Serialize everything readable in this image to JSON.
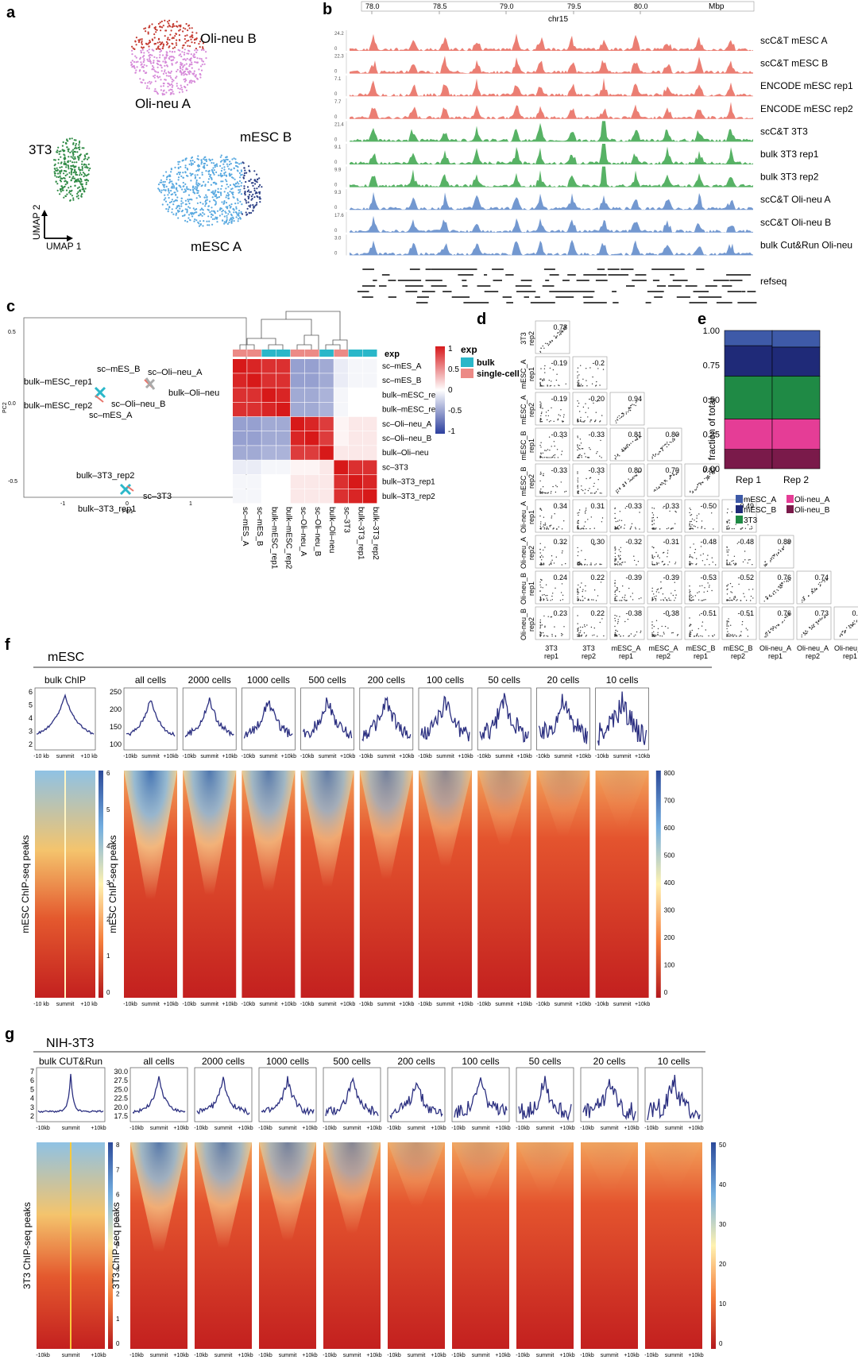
{
  "panel_letters": {
    "a": "a",
    "b": "b",
    "c": "c",
    "d": "d",
    "e": "e",
    "f": "f",
    "g": "g"
  },
  "panel_a": {
    "clusters": {
      "oli_b": "Oli-neu B",
      "oli_a": "Oli-neu A",
      "t3": "3T3",
      "mesc_b": "mESC B",
      "mesc_a": "mESC A"
    },
    "axis": {
      "y": "UMAP 2",
      "x": "UMAP 1"
    }
  },
  "panel_b": {
    "ticks": [
      "78.0",
      "78.5",
      "79.0",
      "79.5",
      "80.0"
    ],
    "unit": "Mbp",
    "chrom": "chr15",
    "tracks": [
      {
        "label": "scC&T mESC A",
        "max": "24.2",
        "color": "#e8675a"
      },
      {
        "label": "scC&T mESC B",
        "max": "22.3",
        "color": "#e8675a"
      },
      {
        "label": "ENCODE mESC rep1",
        "max": "7.1",
        "color": "#e8675a"
      },
      {
        "label": "ENCODE mESC rep2",
        "max": "7.7",
        "color": "#e8675a"
      },
      {
        "label": "scC&T 3T3",
        "max": "21.4",
        "color": "#3aa54a"
      },
      {
        "label": "bulk 3T3 rep1",
        "max": "9.1",
        "color": "#3aa54a"
      },
      {
        "label": "bulk 3T3 rep2",
        "max": "9.9",
        "color": "#3aa54a"
      },
      {
        "label": "scC&T Oli-neu A",
        "max": "9.3",
        "color": "#5b86c8"
      },
      {
        "label": "scC&T Oli-neu B",
        "max": "17.6",
        "color": "#5b86c8"
      },
      {
        "label": "bulk Cut&Run Oli-neu",
        "max": "3.0",
        "color": "#5b86c8"
      }
    ],
    "refseq_label": "refseq"
  },
  "panel_c": {
    "pca": {
      "xlabel": "PC1",
      "ylabel": "PC2",
      "yticks": [
        "0.5",
        "0.0",
        "-0.5"
      ],
      "xticks": [
        "-1",
        "0",
        "1"
      ],
      "labels": {
        "sc_mes_b": "sc–mES_B",
        "bulk_mesc_rep1": "bulk–mESC_rep1",
        "bulk_mesc_rep2": "bulk–mESC_rep2",
        "sc_mes_a": "sc–mES_A",
        "sc_oli_a": "sc–Oli–neu_A",
        "bulk_oli": "bulk–Oli–neu",
        "sc_oli_b": "sc–Oli–neu_B",
        "bulk_3t3_rep2": "bulk–3T3_rep2",
        "sc_3t3": "sc–3T3",
        "bulk_3t3_rep1": "bulk–3T3_rep1"
      }
    },
    "heatmap": {
      "rows": [
        "sc–mES_A",
        "sc–mES_B",
        "bulk–mESC_rep1",
        "bulk–mESC_rep2",
        "sc–Oli–neu_A",
        "sc–Oli–neu_B",
        "bulk–Oli–neu",
        "sc–3T3",
        "bulk–3T3_rep1",
        "bulk–3T3_rep2"
      ],
      "exp_label": "exp",
      "col_exp": [
        "single",
        "single",
        "bulk",
        "bulk",
        "single",
        "single",
        "bulk",
        "single",
        "bulk",
        "bulk"
      ],
      "legend_title": "exp",
      "legend_bulk": "bulk",
      "legend_single": "single-cell",
      "scale_ticks": [
        "1",
        "0.5",
        "0",
        "-0.5",
        "-1"
      ],
      "values": [
        [
          1,
          0.95,
          0.9,
          0.9,
          -0.5,
          -0.5,
          -0.45,
          -0.1,
          -0.05,
          -0.05
        ],
        [
          0.95,
          1,
          0.9,
          0.9,
          -0.5,
          -0.5,
          -0.45,
          -0.1,
          -0.05,
          -0.05
        ],
        [
          0.9,
          0.9,
          1,
          0.95,
          -0.45,
          -0.45,
          -0.4,
          -0.05,
          0,
          0
        ],
        [
          0.9,
          0.9,
          0.95,
          1,
          -0.45,
          -0.45,
          -0.4,
          -0.05,
          0,
          0
        ],
        [
          -0.5,
          -0.5,
          -0.45,
          -0.45,
          1,
          0.95,
          0.85,
          0.05,
          0.1,
          0.1
        ],
        [
          -0.5,
          -0.5,
          -0.45,
          -0.45,
          0.95,
          1,
          0.85,
          0.05,
          0.1,
          0.1
        ],
        [
          -0.45,
          -0.45,
          -0.4,
          -0.4,
          0.85,
          0.85,
          1,
          0.1,
          0.1,
          0.1
        ],
        [
          -0.1,
          -0.1,
          -0.05,
          -0.05,
          0.05,
          0.05,
          0.1,
          1,
          0.9,
          0.9
        ],
        [
          -0.05,
          -0.05,
          0,
          0,
          0.1,
          0.1,
          0.1,
          0.9,
          1,
          0.95
        ],
        [
          -0.05,
          -0.05,
          0,
          0,
          0.1,
          0.1,
          0.1,
          0.9,
          0.95,
          1
        ]
      ]
    }
  },
  "panel_d": {
    "row_labels": [
      "3T3\nrep2",
      "mESC_A\nrep1",
      "mESC_A\nrep2",
      "mESC_B\nrep1",
      "mESC_B\nrep2",
      "Oli-neu_A\nrep1",
      "Oli-neu_A\nrep2",
      "Oli-neu_B\nrep1",
      "Oli-neu_B\nrep2"
    ],
    "col_labels": [
      "3T3\nrep1",
      "3T3\nrep2",
      "mESC_A\nrep1",
      "mESC_A\nrep2",
      "mESC_B\nrep1",
      "mESC_B\nrep2",
      "Oli-neu_A\nrep1",
      "Oli-neu_A\nrep2",
      "Oli-neu_B\nrep1"
    ],
    "corr": [
      [
        "0.78"
      ],
      [
        "-0.19",
        "-0.2"
      ],
      [
        "-0.19",
        "-0.20",
        "0.94"
      ],
      [
        "-0.33",
        "-0.33",
        "0.81",
        "0.80"
      ],
      [
        "-0.33",
        "-0.33",
        "0.80",
        "0.79",
        "0.87"
      ],
      [
        "0.34",
        "0.31",
        "-0.33",
        "-0.33",
        "-0.50",
        "-0.49"
      ],
      [
        "0.32",
        "0.30",
        "-0.32",
        "-0.31",
        "-0.48",
        "-0.48",
        "0.89"
      ],
      [
        "0.24",
        "0.22",
        "-0.39",
        "-0.39",
        "-0.53",
        "-0.52",
        "0.76",
        "0.74"
      ],
      [
        "0.23",
        "0.22",
        "-0.38",
        "-0.38",
        "-0.51",
        "-0.51",
        "0.76",
        "0.73",
        "0.87"
      ]
    ]
  },
  "panel_e": {
    "ylabel": "fraction of total",
    "yticks": [
      "1.00",
      "0.75",
      "0.50",
      "0.25",
      "0.00"
    ],
    "bars": [
      "Rep 1",
      "Rep 2"
    ],
    "legend": [
      {
        "name": "mESC_A",
        "color": "#3e5aa8"
      },
      {
        "name": "Oli-neu_A",
        "color": "#e53d96"
      },
      {
        "name": "mESC_B",
        "color": "#1f2a78"
      },
      {
        "name": "Oli-neu_B",
        "color": "#7a1a4a"
      },
      {
        "name": "3T3",
        "color": "#1f8a45"
      }
    ],
    "chart_data": {
      "type": "bar",
      "categories": [
        "Rep 1",
        "Rep 2"
      ],
      "ylabel": "fraction of total",
      "ylim": [
        0,
        1
      ],
      "series": [
        {
          "name": "Oli-neu_B",
          "values": [
            0.14,
            0.14
          ]
        },
        {
          "name": "Oli-neu_A",
          "values": [
            0.22,
            0.22
          ]
        },
        {
          "name": "3T3",
          "values": [
            0.31,
            0.31
          ]
        },
        {
          "name": "mESC_B",
          "values": [
            0.22,
            0.21
          ]
        },
        {
          "name": "mESC_A",
          "values": [
            0.11,
            0.12
          ]
        }
      ]
    }
  },
  "panel_f": {
    "title": "mESC",
    "first_label": "bulk ChIP",
    "cols": [
      "all cells",
      "2000 cells",
      "1000 cells",
      "500 cells",
      "200 cells",
      "100 cells",
      "50 cells",
      "20 cells",
      "10 cells"
    ],
    "bulk_yticks": [
      "6",
      "5",
      "4",
      "3",
      "2"
    ],
    "sc_yticks": [
      "250",
      "200",
      "150",
      "100"
    ],
    "xticks": [
      "-10 kb",
      "summit",
      "+10 kb"
    ],
    "xticks_small": [
      "-10kb",
      "summit",
      "+10kb"
    ],
    "ylabel_bulk": "mESC ChIP-seq peaks",
    "ylabel_sc": "mESC ChIP-seq peaks",
    "scale_bulk": [
      "6",
      "5",
      "4",
      "3",
      "2",
      "1",
      "0"
    ],
    "scale_sc": [
      "800",
      "700",
      "600",
      "500",
      "400",
      "300",
      "200",
      "100",
      "0"
    ],
    "heat_density": [
      0.95,
      0.9,
      0.85,
      0.8,
      0.7,
      0.55,
      0.3,
      0.18,
      0.08
    ]
  },
  "panel_g": {
    "title": "NIH-3T3",
    "first_label": "bulk CUT&Run",
    "cols": [
      "all cells",
      "2000 cells",
      "1000 cells",
      "500 cells",
      "200 cells",
      "100 cells",
      "50 cells",
      "20 cells",
      "10 cells"
    ],
    "bulk_yticks": [
      "7",
      "6",
      "5",
      "4",
      "3",
      "2"
    ],
    "sc_yticks": [
      "30.0",
      "27.5",
      "25.0",
      "22.5",
      "20.0",
      "17.5"
    ],
    "xticks": [
      "-10kb",
      "summit",
      "+10kb"
    ],
    "ylabel_bulk": "3T3 ChIP-seq peaks",
    "ylabel_sc": "3T3 ChIP-seq peaks",
    "scale_bulk": [
      "8",
      "7",
      "6",
      "5",
      "4",
      "3",
      "2",
      "1",
      "0"
    ],
    "scale_sc": [
      "50",
      "40",
      "30",
      "20",
      "10",
      "0"
    ],
    "heat_density": [
      0.85,
      0.8,
      0.7,
      0.6,
      0.25,
      0.15,
      0.08,
      0.04,
      0.03
    ]
  }
}
